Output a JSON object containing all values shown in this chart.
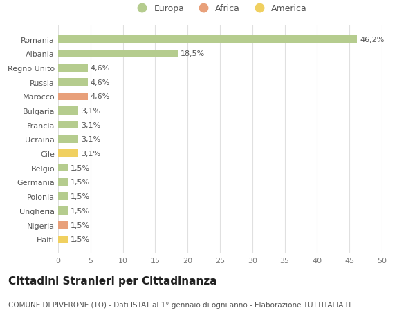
{
  "countries": [
    "Romania",
    "Albania",
    "Regno Unito",
    "Russia",
    "Marocco",
    "Bulgaria",
    "Francia",
    "Ucraina",
    "Cile",
    "Belgio",
    "Germania",
    "Polonia",
    "Ungheria",
    "Nigeria",
    "Haiti"
  ],
  "values": [
    46.2,
    18.5,
    4.6,
    4.6,
    4.6,
    3.1,
    3.1,
    3.1,
    3.1,
    1.5,
    1.5,
    1.5,
    1.5,
    1.5,
    1.5
  ],
  "labels": [
    "46,2%",
    "18,5%",
    "4,6%",
    "4,6%",
    "4,6%",
    "3,1%",
    "3,1%",
    "3,1%",
    "3,1%",
    "1,5%",
    "1,5%",
    "1,5%",
    "1,5%",
    "1,5%",
    "1,5%"
  ],
  "continents": [
    "Europa",
    "Europa",
    "Europa",
    "Europa",
    "Africa",
    "Europa",
    "Europa",
    "Europa",
    "America",
    "Europa",
    "Europa",
    "Europa",
    "Europa",
    "Africa",
    "America"
  ],
  "colors": {
    "Europa": "#b5cc8e",
    "Africa": "#e8a07a",
    "America": "#f0d060"
  },
  "xlim": [
    0,
    50
  ],
  "xticks": [
    0,
    5,
    10,
    15,
    20,
    25,
    30,
    35,
    40,
    45,
    50
  ],
  "title": "Cittadini Stranieri per Cittadinanza",
  "subtitle": "COMUNE DI PIVERONE (TO) - Dati ISTAT al 1° gennaio di ogni anno - Elaborazione TUTTITALIA.IT",
  "background_color": "#ffffff",
  "grid_color": "#e0e0e0",
  "bar_height": 0.55,
  "label_fontsize": 8,
  "ytick_fontsize": 8,
  "xtick_fontsize": 8,
  "title_fontsize": 11,
  "subtitle_fontsize": 7.5,
  "legend_fontsize": 9
}
